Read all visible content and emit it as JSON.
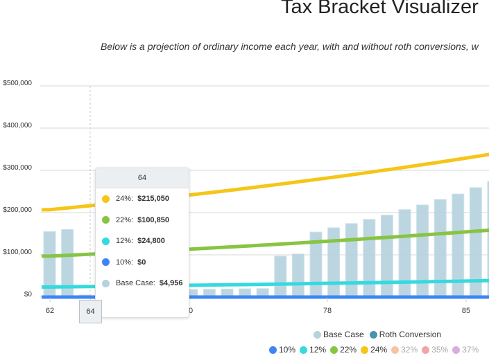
{
  "title": "Tax Bracket Visualizer",
  "subtitle": "Below is a projection of ordinary income each year, with and without roth conversions, w",
  "chart_data": {
    "type": "bar",
    "title": "",
    "xlabel": "",
    "ylabel": "",
    "x": [
      62,
      63,
      64,
      65,
      66,
      67,
      68,
      69,
      70,
      71,
      72,
      73,
      74,
      75,
      76,
      77,
      78,
      79,
      80,
      81,
      82,
      83,
      84,
      85,
      86,
      87
    ],
    "x_tick_labels": [
      "62",
      "70",
      "78",
      "85"
    ],
    "y_tick_labels": [
      "$0",
      "$100,000",
      "$200,000",
      "$300,000",
      "$400,000",
      "$500,000"
    ],
    "ylim": [
      0,
      500000
    ],
    "grid": true,
    "bar_series": [
      {
        "name": "Base Case",
        "color": "#b5d2de",
        "values": [
          155000,
          160000,
          4956,
          15000,
          16000,
          17000,
          17500,
          18000,
          18000,
          18500,
          19000,
          19500,
          20000,
          97000,
          102000,
          154000,
          164000,
          174000,
          184000,
          194000,
          207000,
          218000,
          231000,
          244000,
          259000,
          274000
        ]
      },
      {
        "name": "Roth Conversion",
        "color": "#4b93ab",
        "values": []
      }
    ],
    "line_series": [
      {
        "name": "10%",
        "color": "#3d85f5",
        "values": [
          0,
          0,
          0,
          0,
          0,
          0,
          0,
          0,
          0,
          0,
          0,
          0,
          0,
          0,
          0,
          0,
          0,
          0,
          0,
          0,
          0,
          0,
          0,
          0,
          0,
          0
        ]
      },
      {
        "name": "12%",
        "color": "#35dadf",
        "values": [
          23800,
          24300,
          24800,
          25300,
          25800,
          26300,
          26800,
          27400,
          27900,
          28500,
          29100,
          29600,
          30200,
          30800,
          31400,
          32100,
          32700,
          33400,
          34000,
          34700,
          35400,
          36100,
          36900,
          37600,
          38300,
          39100
        ]
      },
      {
        "name": "22%",
        "color": "#88c443",
        "values": [
          96900,
          98800,
          100850,
          102900,
          104900,
          107000,
          109100,
          111300,
          113600,
          115900,
          118200,
          120500,
          122900,
          125400,
          127900,
          130500,
          133000,
          135700,
          138500,
          141200,
          144000,
          146900,
          149900,
          152900,
          155900,
          159000
        ]
      },
      {
        "name": "24%",
        "color": "#f5c518",
        "values": [
          206700,
          210800,
          215050,
          219350,
          223700,
          228200,
          232700,
          237400,
          242200,
          247000,
          251900,
          257000,
          262100,
          267300,
          272700,
          278200,
          283700,
          289400,
          295200,
          301100,
          307100,
          313300,
          319500,
          326000,
          332500,
          339100
        ]
      }
    ],
    "legend": {
      "placement": "bottom-right",
      "series": [
        {
          "name": "Base Case",
          "color": "#b5d2de",
          "visible": true
        },
        {
          "name": "Roth Conversion",
          "color": "#4b93ab",
          "visible": true
        }
      ],
      "brackets": [
        {
          "name": "10%",
          "color": "#3d85f5",
          "visible": true
        },
        {
          "name": "12%",
          "color": "#35dadf",
          "visible": true
        },
        {
          "name": "22%",
          "color": "#88c443",
          "visible": true
        },
        {
          "name": "24%",
          "color": "#f5c518",
          "visible": true
        },
        {
          "name": "32%",
          "color": "#f6c4a2",
          "visible": false
        },
        {
          "name": "35%",
          "color": "#f2a5a8",
          "visible": false
        },
        {
          "name": "37%",
          "color": "#d8aedc",
          "visible": false
        }
      ]
    },
    "tooltip": {
      "header": "64",
      "rows": [
        {
          "label": "24%:",
          "value": "$215,050",
          "color": "#f5c518"
        },
        {
          "label": "22%:",
          "value": "$100,850",
          "color": "#88c443"
        },
        {
          "label": "12%:",
          "value": "$24,800",
          "color": "#35dadf"
        },
        {
          "label": "10%:",
          "value": "$0",
          "color": "#3d85f5"
        },
        {
          "label": "Base Case:",
          "value": "$4,956",
          "color": "#b5d2de"
        }
      ]
    },
    "crosshair_label": "64"
  }
}
